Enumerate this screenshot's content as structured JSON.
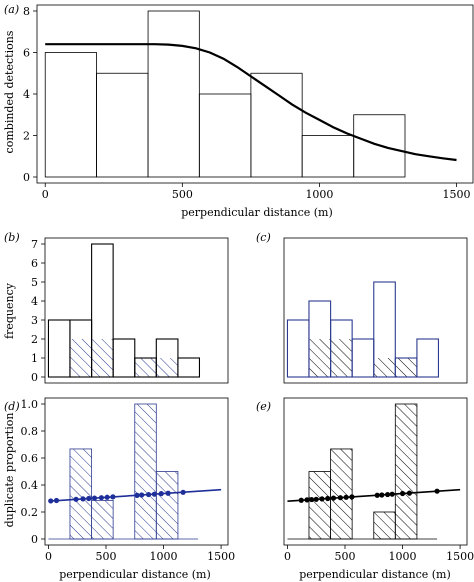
{
  "chart_data": [
    {
      "panel_label": "(a)",
      "type": "bar",
      "ylabel": "combinded detections",
      "xlabel": "perpendicular distance (m)",
      "xlim": [
        -30,
        1560
      ],
      "ylim": [
        0,
        8
      ],
      "xticks": [
        0,
        500,
        1000,
        1500
      ],
      "yticks": [
        0,
        2,
        4,
        6,
        8
      ],
      "grid": false,
      "bins": [
        {
          "x0": 0,
          "x1": 187,
          "value": 6
        },
        {
          "x0": 187,
          "x1": 375,
          "value": 5
        },
        {
          "x0": 375,
          "x1": 562,
          "value": 8
        },
        {
          "x0": 562,
          "x1": 750,
          "value": 4
        },
        {
          "x0": 750,
          "x1": 937,
          "value": 5
        },
        {
          "x0": 937,
          "x1": 1125,
          "value": 2
        },
        {
          "x0": 1125,
          "x1": 1312,
          "value": 3
        },
        {
          "x0": 1312,
          "x1": 1500,
          "value": 0
        }
      ],
      "curve": {
        "x": [
          0,
          100,
          200,
          300,
          400,
          450,
          500,
          550,
          600,
          650,
          700,
          750,
          800,
          850,
          900,
          950,
          1000,
          1050,
          1100,
          1150,
          1200,
          1250,
          1300,
          1350,
          1400,
          1450,
          1500
        ],
        "y": [
          6.4,
          6.4,
          6.4,
          6.4,
          6.4,
          6.38,
          6.32,
          6.2,
          6.0,
          5.7,
          5.3,
          4.85,
          4.4,
          3.95,
          3.5,
          3.1,
          2.75,
          2.4,
          2.1,
          1.85,
          1.6,
          1.4,
          1.25,
          1.1,
          1.0,
          0.9,
          0.82
        ]
      }
    },
    {
      "panel_label": "(b)",
      "type": "bar",
      "ylabel": "frequency",
      "xlim": [
        -30,
        1560
      ],
      "ylim": [
        0,
        7
      ],
      "yticks": [
        0,
        1,
        2,
        3,
        4,
        5,
        6,
        7
      ],
      "outline_color": "#000000",
      "hatch_color": "#2b3a8f",
      "bins": [
        {
          "x0": 0,
          "x1": 187,
          "value": 3,
          "hatched": 0
        },
        {
          "x0": 187,
          "x1": 375,
          "value": 3,
          "hatched": 2
        },
        {
          "x0": 375,
          "x1": 562,
          "value": 7,
          "hatched": 2
        },
        {
          "x0": 562,
          "x1": 750,
          "value": 2,
          "hatched": 0
        },
        {
          "x0": 750,
          "x1": 937,
          "value": 1,
          "hatched": 1
        },
        {
          "x0": 937,
          "x1": 1125,
          "value": 2,
          "hatched": 1
        },
        {
          "x0": 1125,
          "x1": 1312,
          "value": 1,
          "hatched": 0
        },
        {
          "x0": 1312,
          "x1": 1500,
          "value": 0,
          "hatched": 0
        }
      ]
    },
    {
      "panel_label": "(c)",
      "type": "bar",
      "xlim": [
        -30,
        1560
      ],
      "ylim": [
        0,
        7
      ],
      "yticks": [
        0,
        1,
        2,
        3,
        4,
        5,
        6,
        7
      ],
      "outline_color": "#2b3a8f",
      "hatch_color": "#000000",
      "bins": [
        {
          "x0": 0,
          "x1": 187,
          "value": 3,
          "hatched": 0
        },
        {
          "x0": 187,
          "x1": 375,
          "value": 4,
          "hatched": 2
        },
        {
          "x0": 375,
          "x1": 562,
          "value": 3,
          "hatched": 2
        },
        {
          "x0": 562,
          "x1": 750,
          "value": 2,
          "hatched": 0
        },
        {
          "x0": 750,
          "x1": 937,
          "value": 5,
          "hatched": 1
        },
        {
          "x0": 937,
          "x1": 1125,
          "value": 1,
          "hatched": 1
        },
        {
          "x0": 1125,
          "x1": 1312,
          "value": 2,
          "hatched": 0
        },
        {
          "x0": 1312,
          "x1": 1500,
          "value": 0,
          "hatched": 0
        }
      ]
    },
    {
      "panel_label": "(d)",
      "type": "bar",
      "ylabel": "duplicate proportion",
      "xlabel": "perpendicular distance (m)",
      "xlim": [
        -30,
        1560
      ],
      "ylim": [
        0,
        1.0
      ],
      "xticks": [
        0,
        500,
        1000,
        1500
      ],
      "yticks": [
        0,
        0.2,
        0.4,
        0.6,
        0.8,
        1.0
      ],
      "ytick_labels": [
        "0",
        "0.2",
        "0.4",
        "0.6",
        "0.8",
        "1.0"
      ],
      "hatch_color": "#2b3a8f",
      "line_color": "#1f2f9a",
      "bins": [
        {
          "x0": 0,
          "x1": 187,
          "value": 0
        },
        {
          "x0": 187,
          "x1": 375,
          "value": 0.667
        },
        {
          "x0": 375,
          "x1": 562,
          "value": 0.286
        },
        {
          "x0": 562,
          "x1": 750,
          "value": 0
        },
        {
          "x0": 750,
          "x1": 937,
          "value": 1.0
        },
        {
          "x0": 937,
          "x1": 1125,
          "value": 0.5
        },
        {
          "x0": 1125,
          "x1": 1312,
          "value": 0
        },
        {
          "x0": 1312,
          "x1": 1500,
          "value": 0
        }
      ],
      "fit_line": {
        "x": [
          0,
          1500
        ],
        "y": [
          0.28,
          0.365
        ]
      },
      "points": [
        {
          "x": 20,
          "y": 0.282
        },
        {
          "x": 70,
          "y": 0.285
        },
        {
          "x": 240,
          "y": 0.294
        },
        {
          "x": 300,
          "y": 0.297
        },
        {
          "x": 350,
          "y": 0.3
        },
        {
          "x": 400,
          "y": 0.303
        },
        {
          "x": 460,
          "y": 0.306
        },
        {
          "x": 510,
          "y": 0.309
        },
        {
          "x": 560,
          "y": 0.312
        },
        {
          "x": 770,
          "y": 0.323
        },
        {
          "x": 810,
          "y": 0.326
        },
        {
          "x": 870,
          "y": 0.329
        },
        {
          "x": 920,
          "y": 0.332
        },
        {
          "x": 980,
          "y": 0.336
        },
        {
          "x": 1040,
          "y": 0.339
        },
        {
          "x": 1170,
          "y": 0.346
        }
      ]
    },
    {
      "panel_label": "(e)",
      "type": "bar",
      "xlabel": "perpendicular distance (m)",
      "xlim": [
        -30,
        1560
      ],
      "ylim": [
        0,
        1.0
      ],
      "xticks": [
        0,
        500,
        1000,
        1500
      ],
      "yticks": [
        0,
        0.2,
        0.4,
        0.6,
        0.8,
        1.0
      ],
      "hatch_color": "#000000",
      "line_color": "#000000",
      "bins": [
        {
          "x0": 0,
          "x1": 187,
          "value": 0
        },
        {
          "x0": 187,
          "x1": 375,
          "value": 0.5
        },
        {
          "x0": 375,
          "x1": 562,
          "value": 0.667
        },
        {
          "x0": 562,
          "x1": 750,
          "value": 0
        },
        {
          "x0": 750,
          "x1": 937,
          "value": 0.2
        },
        {
          "x0": 937,
          "x1": 1125,
          "value": 1.0
        },
        {
          "x0": 1125,
          "x1": 1312,
          "value": 0
        },
        {
          "x0": 1312,
          "x1": 1500,
          "value": 0
        }
      ],
      "fit_line": {
        "x": [
          0,
          1500
        ],
        "y": [
          0.28,
          0.365
        ]
      },
      "points": [
        {
          "x": 120,
          "y": 0.287
        },
        {
          "x": 170,
          "y": 0.29
        },
        {
          "x": 210,
          "y": 0.292
        },
        {
          "x": 250,
          "y": 0.294
        },
        {
          "x": 300,
          "y": 0.297
        },
        {
          "x": 350,
          "y": 0.3
        },
        {
          "x": 400,
          "y": 0.303
        },
        {
          "x": 460,
          "y": 0.306
        },
        {
          "x": 510,
          "y": 0.309
        },
        {
          "x": 560,
          "y": 0.312
        },
        {
          "x": 780,
          "y": 0.324
        },
        {
          "x": 820,
          "y": 0.326
        },
        {
          "x": 870,
          "y": 0.329
        },
        {
          "x": 910,
          "y": 0.332
        },
        {
          "x": 1000,
          "y": 0.337
        },
        {
          "x": 1060,
          "y": 0.34
        },
        {
          "x": 1300,
          "y": 0.354
        }
      ]
    }
  ]
}
